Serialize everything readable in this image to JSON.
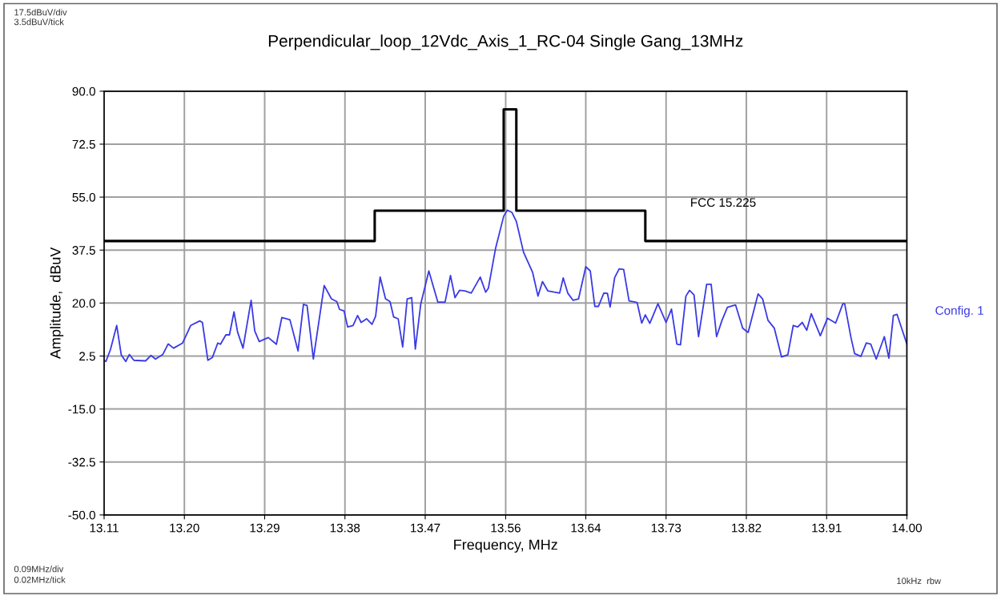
{
  "chart_data": {
    "type": "line",
    "title": "Perpendicular_loop_12Vdc_Axis_1_RC-04 Single Gang_13MHz",
    "xlabel": "Frequency, MHz",
    "ylabel": "Amplitude,  dBuV",
    "xlim": [
      13.11,
      14.0
    ],
    "xticks": [
      {
        "value": 13.11,
        "label": "13.11"
      },
      {
        "value": 13.199,
        "label": "13.20"
      },
      {
        "value": 13.288,
        "label": "13.29"
      },
      {
        "value": 13.377,
        "label": "13.38"
      },
      {
        "value": 13.466,
        "label": "13.47"
      },
      {
        "value": 13.5552,
        "label": "13.56"
      },
      {
        "value": 13.644,
        "label": "13.64"
      },
      {
        "value": 13.733,
        "label": "13.73"
      },
      {
        "value": 13.822,
        "label": "13.82"
      },
      {
        "value": 13.911,
        "label": "13.91"
      },
      {
        "value": 14.0,
        "label": "14.00"
      }
    ],
    "ylim": [
      -50,
      90
    ],
    "yticks": [
      {
        "value": -50,
        "label": "-50.0"
      },
      {
        "value": -32.5,
        "label": "-32.5"
      },
      {
        "value": -15,
        "label": "-15.0"
      },
      {
        "value": 2.5,
        "label": "2.5"
      },
      {
        "value": 20,
        "label": "20.0"
      },
      {
        "value": 37.5,
        "label": "37.5"
      },
      {
        "value": 55,
        "label": "55.0"
      },
      {
        "value": 72.5,
        "label": "72.5"
      },
      {
        "value": 90,
        "label": "90.0"
      }
    ],
    "grid": true,
    "legend": false,
    "marker": "none",
    "annotations": [
      "17.5dBuV/div",
      "3.5dBuV/tick",
      "0.09MHz/div",
      "0.02MHz/tick",
      "10kHz  rbw"
    ],
    "series": [
      {
        "name": "FCC 15.225",
        "color": "#000000",
        "line_style": "solid",
        "x": [
          13.11,
          13.41,
          13.41,
          13.553,
          13.553,
          13.567,
          13.567,
          13.71,
          13.71,
          14.0
        ],
        "values": [
          40.5,
          40.5,
          50.5,
          50.5,
          84,
          84,
          50.5,
          50.5,
          40.5,
          40.5
        ]
      },
      {
        "name": "Config. 1",
        "color": "#3a3ae6",
        "line_style": "solid",
        "x": [
          13.11,
          13.112,
          13.117,
          13.124,
          13.129,
          13.134,
          13.138,
          13.143,
          13.156,
          13.162,
          13.167,
          13.175,
          13.181,
          13.187,
          13.197,
          13.206,
          13.216,
          13.219,
          13.225,
          13.23,
          13.236,
          13.239,
          13.245,
          13.249,
          13.254,
          13.258,
          13.264,
          13.273,
          13.277,
          13.282,
          13.292,
          13.301,
          13.307,
          13.316,
          13.325,
          13.331,
          13.335,
          13.342,
          13.354,
          13.362,
          13.368,
          13.371,
          13.376,
          13.38,
          13.386,
          13.391,
          13.395,
          13.401,
          13.407,
          13.411,
          13.416,
          13.422,
          13.427,
          13.431,
          13.436,
          13.441,
          13.446,
          13.451,
          13.455,
          13.461,
          13.47,
          13.48,
          13.488,
          13.494,
          13.499,
          13.504,
          13.51,
          13.517,
          13.527,
          13.533,
          13.536,
          13.544,
          13.553,
          13.557,
          13.562,
          13.567,
          13.575,
          13.585,
          13.591,
          13.596,
          13.602,
          13.609,
          13.615,
          13.619,
          13.624,
          13.63,
          13.636,
          13.644,
          13.649,
          13.654,
          13.658,
          13.664,
          13.668,
          13.671,
          13.676,
          13.681,
          13.686,
          13.692,
          13.699,
          13.701,
          13.706,
          13.71,
          13.715,
          13.724,
          13.733,
          13.739,
          13.745,
          13.749,
          13.755,
          13.759,
          13.764,
          13.769,
          13.778,
          13.783,
          13.789,
          13.795,
          13.801,
          13.81,
          13.818,
          13.824,
          13.835,
          13.84,
          13.846,
          13.853,
          13.861,
          13.868,
          13.874,
          13.879,
          13.884,
          13.889,
          13.894,
          13.904,
          13.912,
          13.921,
          13.929,
          13.931,
          13.938,
          13.942,
          13.949,
          13.955,
          13.96,
          13.966,
          13.975,
          13.98,
          13.985,
          13.989,
          14.0
        ],
        "values": [
          1.1,
          0.7,
          4.6,
          12.6,
          2.9,
          0.7,
          3.0,
          1.1,
          0.9,
          2.7,
          1.5,
          3.0,
          6.5,
          5.1,
          6.8,
          12.6,
          14.1,
          13.6,
          1.1,
          2.0,
          6.8,
          6.4,
          9.5,
          9.5,
          17.1,
          10.4,
          5.1,
          20.9,
          10.8,
          7.3,
          8.6,
          6.4,
          15.2,
          14.5,
          4.2,
          19.6,
          19.2,
          1.5,
          25.8,
          21.4,
          20.5,
          17.9,
          17.4,
          12.1,
          12.6,
          15.9,
          13.6,
          14.8,
          13.0,
          15.6,
          28.6,
          21.4,
          20.5,
          15.4,
          14.8,
          5.5,
          21.4,
          21.8,
          4.8,
          19.6,
          30.6,
          20.3,
          20.3,
          29.1,
          21.8,
          24.2,
          24.0,
          23.3,
          28.6,
          23.6,
          24.9,
          38.1,
          48.7,
          50.7,
          50.0,
          47.0,
          36.8,
          30.2,
          22.3,
          27.1,
          24.0,
          23.6,
          23.3,
          28.3,
          23.3,
          20.9,
          21.4,
          32.0,
          30.6,
          18.9,
          18.9,
          23.3,
          23.2,
          18.7,
          28.4,
          31.3,
          31.1,
          20.7,
          20.3,
          20.1,
          13.4,
          16.1,
          13.3,
          19.8,
          13.6,
          18.0,
          6.4,
          6.2,
          22.3,
          24.2,
          22.7,
          8.9,
          26.2,
          26.2,
          8.9,
          14.3,
          18.6,
          19.4,
          11.7,
          10.3,
          23.0,
          21.4,
          14.3,
          11.7,
          2.2,
          2.9,
          12.6,
          12.1,
          13.6,
          11.0,
          16.5,
          9.2,
          15.0,
          13.4,
          19.8,
          19.8,
          8.6,
          3.3,
          2.4,
          6.8,
          6.4,
          1.5,
          8.9,
          1.8,
          15.9,
          16.3,
          6.4
        ]
      }
    ]
  }
}
